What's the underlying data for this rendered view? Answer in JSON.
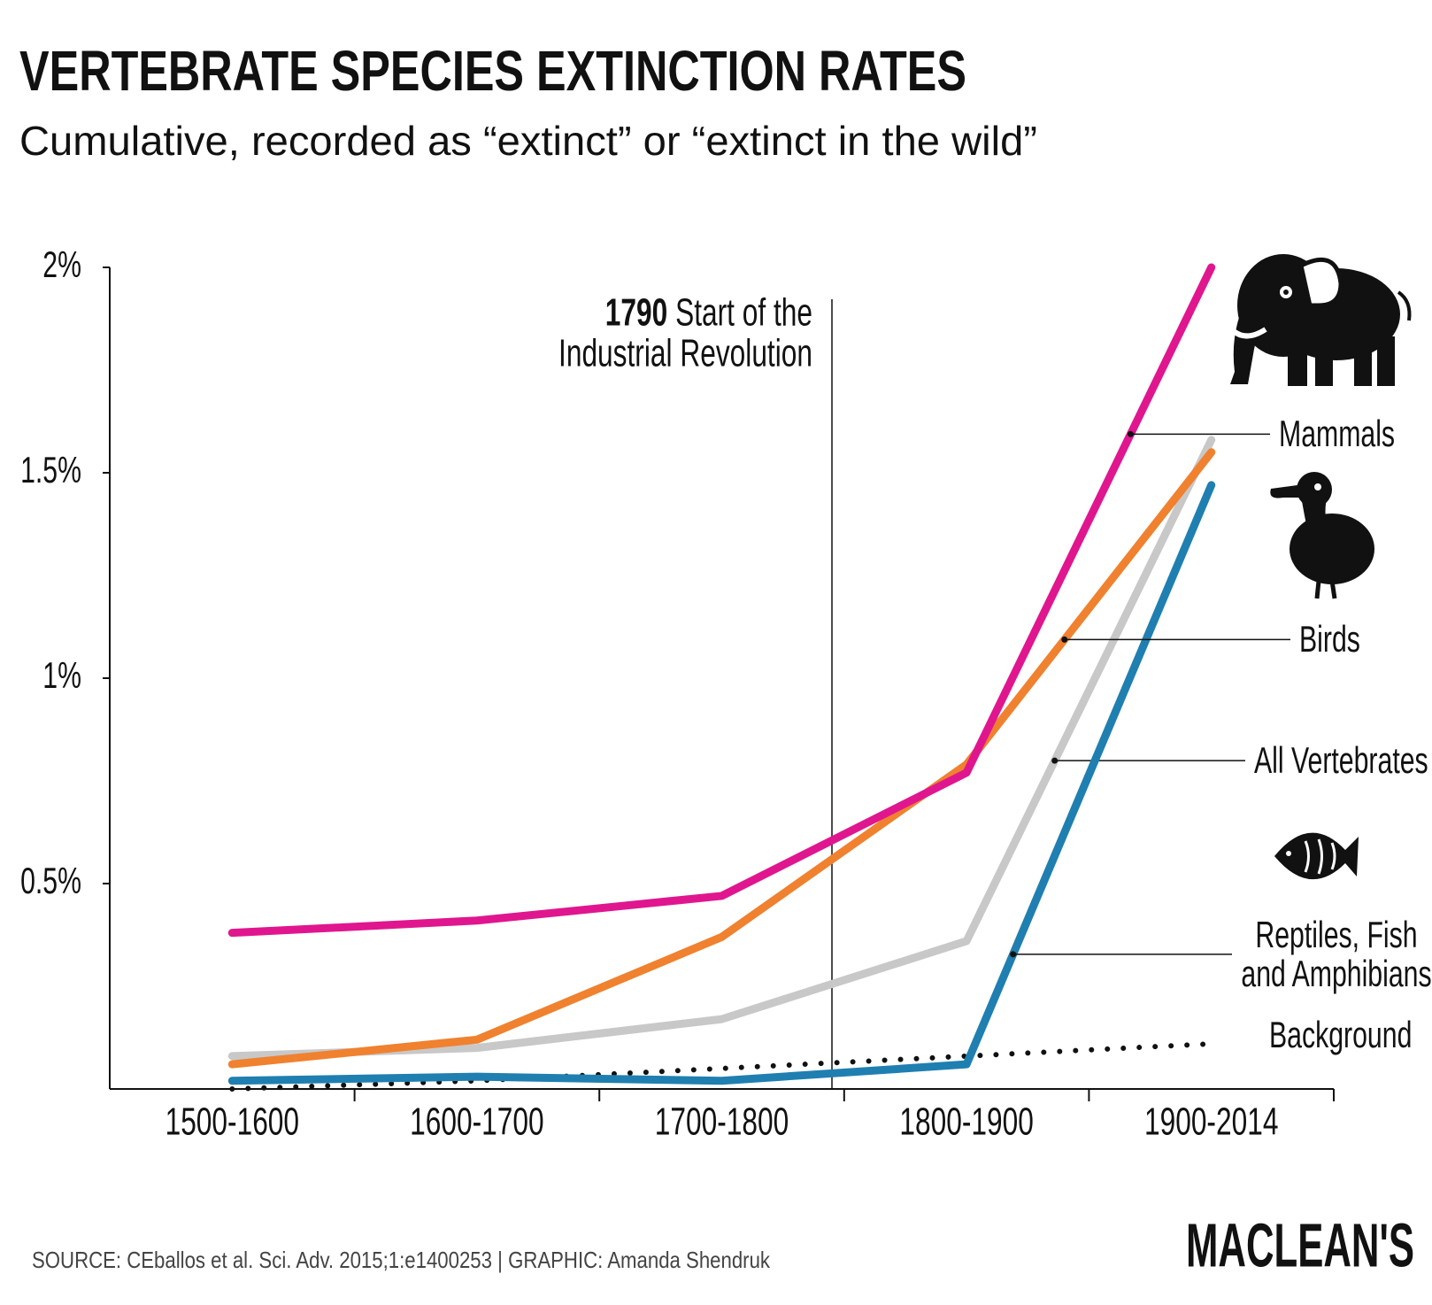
{
  "chart_data": {
    "type": "line",
    "title": "VERTEBRATE SPECIES EXTINCTION RATES",
    "subtitle": "Cumulative, recorded as “extinct” or “extinct in the wild”",
    "categories": [
      "1500-1600",
      "1600-1700",
      "1700-1800",
      "1800-1900",
      "1900-2014"
    ],
    "ylim": [
      0,
      2
    ],
    "yticks": [
      {
        "value": 0.5,
        "label": "0.5%"
      },
      {
        "value": 1,
        "label": "1%"
      },
      {
        "value": 1.5,
        "label": "1.5%"
      },
      {
        "value": 2,
        "label": "2%"
      }
    ],
    "series": [
      {
        "name": "Mammals",
        "color": "#e0168f",
        "values": [
          0.38,
          0.41,
          0.47,
          0.77,
          2.0
        ]
      },
      {
        "name": "Birds",
        "color": "#f0812f",
        "values": [
          0.06,
          0.12,
          0.37,
          0.79,
          1.55
        ]
      },
      {
        "name": "All Vertebrates",
        "color": "#c8c8c8",
        "values": [
          0.08,
          0.1,
          0.17,
          0.36,
          1.58
        ]
      },
      {
        "name": "Reptiles, Fish and Amphibians",
        "color": "#1f7fb0",
        "values": [
          0.02,
          0.03,
          0.02,
          0.06,
          1.47
        ]
      },
      {
        "name": "Background",
        "color": "#111111",
        "line_style": "dotted",
        "values": [
          0.0,
          0.02,
          0.05,
          0.08,
          0.11
        ]
      }
    ],
    "annotation": {
      "label": "1790",
      "lines": [
        "Start of the",
        "Industrial Revolution"
      ]
    },
    "source": "SOURCE: CEballos et al. Sci. Adv. 2015;1:e1400253  |  GRAPHIC: Amanda Shendruk",
    "logo": "MACLEAN'S"
  }
}
